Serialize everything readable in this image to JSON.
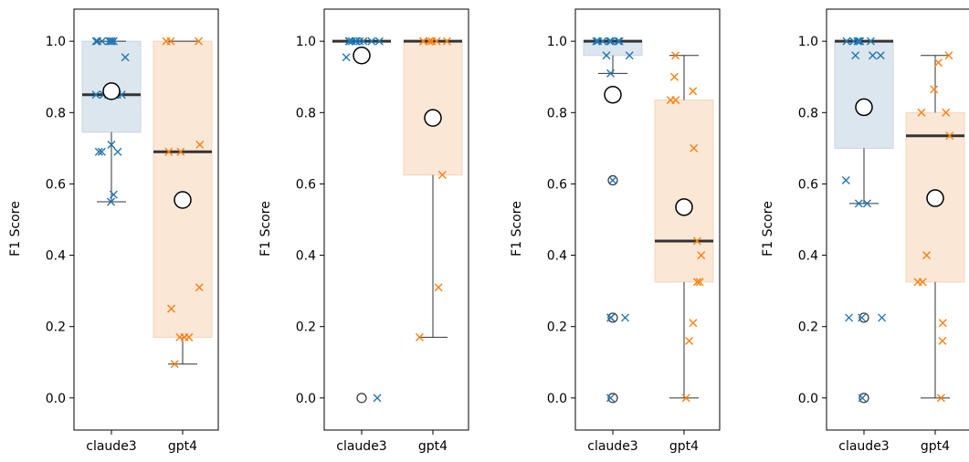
{
  "colors": {
    "claude3": "#1f77b4",
    "gpt4": "#ff7f0e",
    "claude3_box": "#dce6ef",
    "gpt4_box": "#fbe7d6",
    "median": "#333333",
    "whisker": "#333333",
    "mean_marker": "#000000"
  },
  "chart_data": [
    {
      "type": "box",
      "title": "",
      "xlabel": "",
      "ylabel": "F1 Score",
      "ylim": [
        -0.09,
        1.09
      ],
      "yticks": [
        "0.0",
        "0.2",
        "0.4",
        "0.6",
        "0.8",
        "1.0"
      ],
      "categories": [
        "claude3",
        "gpt4"
      ],
      "grid": false,
      "boxes": [
        {
          "name": "claude3",
          "q1": 0.745,
          "median": 0.85,
          "q3": 1.0,
          "whisker_low": 0.55,
          "whisker_high": 1.0,
          "mean": 0.86,
          "outliers": []
        },
        {
          "name": "gpt4",
          "q1": 0.17,
          "median": 0.69,
          "q3": 1.0,
          "whisker_low": 0.095,
          "whisker_high": 1.0,
          "mean": 0.555,
          "outliers": []
        }
      ],
      "points": [
        {
          "series": "claude3",
          "values": [
            1.0,
            1.0,
            1.0,
            1.0,
            1.0,
            1.0,
            1.0,
            0.955,
            0.85,
            0.85,
            0.85,
            0.85,
            0.85,
            0.85,
            0.71,
            0.69,
            0.69,
            0.69,
            0.57,
            0.55
          ]
        },
        {
          "series": "gpt4",
          "values": [
            1.0,
            1.0,
            1.0,
            0.71,
            0.69,
            0.69,
            0.31,
            0.25,
            0.17,
            0.17,
            0.17,
            0.095
          ]
        }
      ]
    },
    {
      "type": "box",
      "title": "",
      "xlabel": "",
      "ylabel": "F1 Score",
      "ylim": [
        -0.09,
        1.09
      ],
      "yticks": [
        "0.0",
        "0.2",
        "0.4",
        "0.6",
        "0.8",
        "1.0"
      ],
      "categories": [
        "claude3",
        "gpt4"
      ],
      "grid": false,
      "boxes": [
        {
          "name": "claude3",
          "q1": 1.0,
          "median": 1.0,
          "q3": 1.0,
          "whisker_low": 1.0,
          "whisker_high": 1.0,
          "mean": 0.96,
          "outliers": [
            0.0
          ]
        },
        {
          "name": "gpt4",
          "q1": 0.625,
          "median": 1.0,
          "q3": 1.0,
          "whisker_low": 0.17,
          "whisker_high": 1.0,
          "mean": 0.785,
          "outliers": []
        }
      ],
      "points": [
        {
          "series": "claude3",
          "values": [
            1.0,
            1.0,
            1.0,
            1.0,
            1.0,
            1.0,
            1.0,
            1.0,
            1.0,
            1.0,
            0.955,
            0.0
          ]
        },
        {
          "series": "gpt4",
          "values": [
            1.0,
            1.0,
            1.0,
            1.0,
            1.0,
            1.0,
            0.625,
            0.31,
            0.17
          ]
        }
      ]
    },
    {
      "type": "box",
      "title": "",
      "xlabel": "",
      "ylabel": "F1 Score",
      "ylim": [
        -0.09,
        1.09
      ],
      "yticks": [
        "0.0",
        "0.2",
        "0.4",
        "0.6",
        "0.8",
        "1.0"
      ],
      "categories": [
        "claude3",
        "gpt4"
      ],
      "grid": false,
      "boxes": [
        {
          "name": "claude3",
          "q1": 0.96,
          "median": 1.0,
          "q3": 1.0,
          "whisker_low": 0.91,
          "whisker_high": 1.0,
          "mean": 0.85,
          "outliers": [
            0.61,
            0.225,
            0.0
          ]
        },
        {
          "name": "gpt4",
          "q1": 0.325,
          "median": 0.44,
          "q3": 0.835,
          "whisker_low": 0.0,
          "whisker_high": 0.96,
          "mean": 0.535,
          "outliers": []
        }
      ],
      "points": [
        {
          "series": "claude3",
          "values": [
            1.0,
            1.0,
            1.0,
            1.0,
            1.0,
            1.0,
            1.0,
            0.96,
            0.96,
            0.91,
            0.61,
            0.225,
            0.225,
            0.225,
            0.0
          ]
        },
        {
          "series": "gpt4",
          "values": [
            0.96,
            0.9,
            0.86,
            0.835,
            0.835,
            0.7,
            0.44,
            0.4,
            0.325,
            0.325,
            0.21,
            0.16,
            0.0
          ]
        }
      ]
    },
    {
      "type": "box",
      "title": "",
      "xlabel": "",
      "ylabel": "F1 Score",
      "ylim": [
        -0.09,
        1.09
      ],
      "yticks": [
        "0.0",
        "0.2",
        "0.4",
        "0.6",
        "0.8",
        "1.0"
      ],
      "categories": [
        "claude3",
        "gpt4"
      ],
      "grid": false,
      "boxes": [
        {
          "name": "claude3",
          "q1": 0.7,
          "median": 1.0,
          "q3": 1.0,
          "whisker_low": 0.545,
          "whisker_high": 1.0,
          "mean": 0.815,
          "outliers": [
            0.225,
            0.0
          ]
        },
        {
          "name": "gpt4",
          "q1": 0.325,
          "median": 0.735,
          "q3": 0.8,
          "whisker_low": 0.0,
          "whisker_high": 0.96,
          "mean": 0.56,
          "outliers": []
        }
      ],
      "points": [
        {
          "series": "claude3",
          "values": [
            1.0,
            1.0,
            1.0,
            1.0,
            1.0,
            1.0,
            0.96,
            0.96,
            0.96,
            0.61,
            0.545,
            0.545,
            0.225,
            0.225,
            0.225,
            0.0
          ]
        },
        {
          "series": "gpt4",
          "values": [
            0.96,
            0.94,
            0.865,
            0.8,
            0.8,
            0.735,
            0.4,
            0.325,
            0.325,
            0.21,
            0.16,
            0.0
          ]
        }
      ]
    }
  ]
}
